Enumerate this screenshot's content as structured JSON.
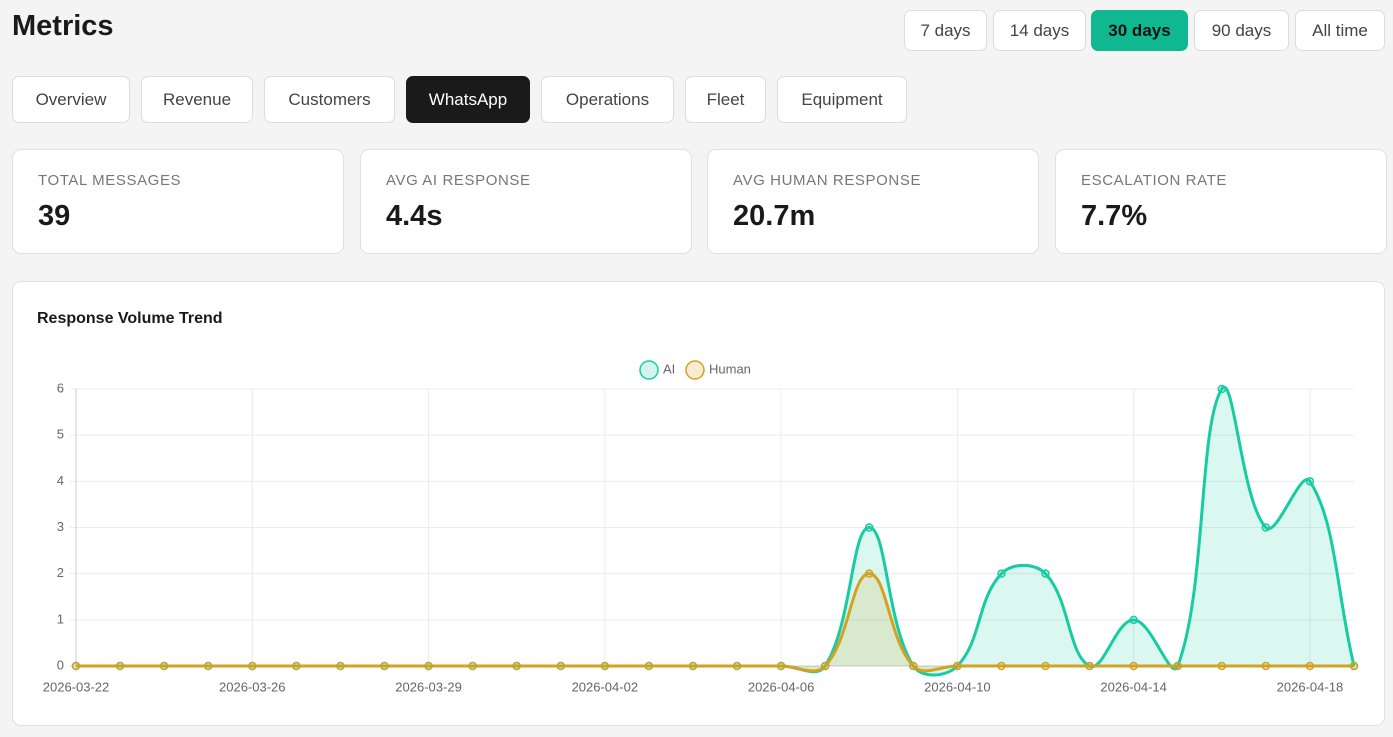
{
  "header": {
    "title": "Metrics"
  },
  "ranges": [
    "7 days",
    "14 days",
    "30 days",
    "90 days",
    "All time"
  ],
  "tabs": [
    "Overview",
    "Revenue",
    "Customers",
    "WhatsApp",
    "Operations",
    "Fleet",
    "Equipment"
  ],
  "kpis": [
    {
      "label": "TOTAL MESSAGES",
      "value": "39"
    },
    {
      "label": "AVG AI RESPONSE",
      "value": "4.4s"
    },
    {
      "label": "AVG HUMAN RESPONSE",
      "value": "20.7m"
    },
    {
      "label": "ESCALATION RATE",
      "value": "7.7%"
    }
  ],
  "chart_data": {
    "type": "line",
    "title": "Response Volume Trend",
    "fill": true,
    "grid": true,
    "legend": "top",
    "categories": [
      "2026-03-22",
      null,
      null,
      null,
      "2026-03-26",
      null,
      null,
      null,
      "2026-03-29",
      null,
      null,
      null,
      "2026-04-02",
      null,
      null,
      null,
      "2026-04-06",
      null,
      null,
      null,
      "2026-04-10",
      null,
      null,
      null,
      "2026-04-14",
      null,
      null,
      null,
      "2026-04-18",
      null
    ],
    "series": [
      {
        "name": "AI",
        "color": "#17cca2",
        "values": [
          0,
          0,
          0,
          0,
          0,
          0,
          0,
          0,
          0,
          0,
          0,
          0,
          0,
          0,
          0,
          0,
          0,
          0,
          3,
          0,
          0,
          2,
          2,
          0,
          1,
          0,
          6,
          3,
          4,
          0
        ]
      },
      {
        "name": "Human",
        "color": "#d4a122",
        "values": [
          0,
          0,
          0,
          0,
          0,
          0,
          0,
          0,
          0,
          0,
          0,
          0,
          0,
          0,
          0,
          0,
          0,
          0,
          2,
          0,
          0,
          0,
          0,
          0,
          0,
          0,
          0,
          0,
          0,
          0
        ]
      }
    ],
    "ylim": [
      0,
      6
    ],
    "yticks": [
      0,
      1,
      2,
      3,
      4,
      5,
      6
    ]
  }
}
